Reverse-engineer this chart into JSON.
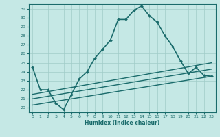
{
  "title": "",
  "xlabel": "Humidex (Indice chaleur)",
  "bg_color": "#c5e8e5",
  "line_color": "#1a6b6b",
  "grid_color": "#a0ccc8",
  "xlim": [
    -0.5,
    23.5
  ],
  "ylim": [
    19.5,
    31.5
  ],
  "yticks": [
    20,
    21,
    22,
    23,
    24,
    25,
    26,
    27,
    28,
    29,
    30,
    31
  ],
  "xticks": [
    0,
    1,
    2,
    3,
    4,
    5,
    6,
    7,
    8,
    9,
    10,
    11,
    12,
    13,
    14,
    15,
    16,
    17,
    18,
    19,
    20,
    21,
    22,
    23
  ],
  "main_line": {
    "x": [
      0,
      1,
      2,
      3,
      4,
      5,
      6,
      7,
      8,
      9,
      10,
      11,
      12,
      13,
      14,
      15,
      16,
      17,
      18,
      19,
      20,
      21,
      22,
      23
    ],
    "y": [
      24.5,
      22.0,
      22.0,
      20.5,
      19.8,
      21.5,
      23.2,
      24.0,
      25.5,
      26.5,
      27.5,
      29.8,
      29.8,
      30.8,
      31.3,
      30.2,
      29.5,
      28.0,
      26.8,
      25.2,
      23.8,
      24.5,
      23.6,
      23.5
    ]
  },
  "diag_lines": [
    {
      "x": [
        0,
        23
      ],
      "y": [
        21.5,
        25.0
      ]
    },
    {
      "x": [
        0,
        23
      ],
      "y": [
        21.0,
        24.3
      ]
    },
    {
      "x": [
        0,
        23
      ],
      "y": [
        20.3,
        23.5
      ]
    }
  ]
}
